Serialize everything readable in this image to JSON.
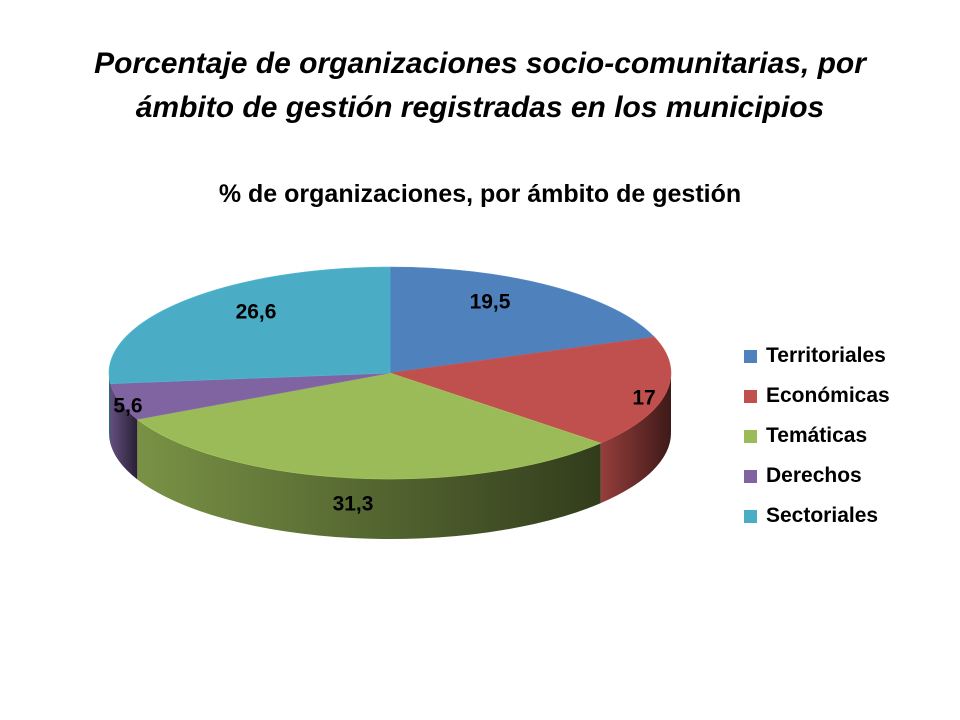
{
  "slide": {
    "title_line1": "Porcentaje de organizaciones socio-comunitarias, por",
    "title_line2": "ámbito de gestión registradas en los municipios"
  },
  "chart_data": {
    "type": "pie",
    "title": "% de organizaciones, por ámbito de gestión",
    "style": "3d",
    "legend_position": "right",
    "categories": [
      "Territoriales",
      "Económicas",
      "Temáticas",
      "Derechos",
      "Sectoriales"
    ],
    "values": [
      19.5,
      17,
      31.3,
      5.6,
      26.6
    ],
    "value_labels": [
      "19,5",
      "17",
      "31,3",
      "5,6",
      "26,6"
    ],
    "colors": [
      "#4f81bd",
      "#c0504d",
      "#9bbb59",
      "#8064a2",
      "#4bacc6"
    ]
  }
}
